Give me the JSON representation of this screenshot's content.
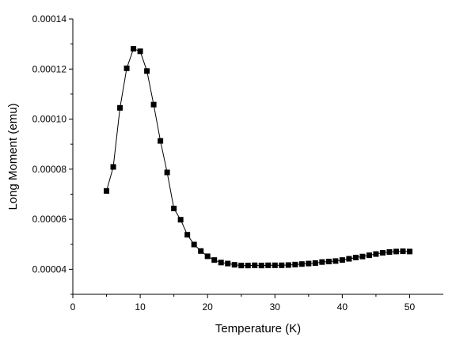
{
  "chart_data": {
    "type": "scatter",
    "title": "",
    "xlabel": "Temperature (K)",
    "ylabel": "Long Moment (emu)",
    "xlim": [
      0,
      55
    ],
    "ylim": [
      3e-05,
      0.00014
    ],
    "xticks": [
      0,
      10,
      20,
      30,
      40,
      50
    ],
    "yticks": [
      4e-05,
      6e-05,
      8e-05,
      0.0001,
      0.00012,
      0.00014
    ],
    "xtick_labels": [
      "0",
      "10",
      "20",
      "30",
      "40",
      "50"
    ],
    "ytick_labels": [
      "0.00004",
      "0.00006",
      "0.00008",
      "0.00010",
      "0.00012",
      "0.00014"
    ],
    "grid": false,
    "legend": false,
    "marker": "square",
    "connected": true,
    "color": "#000000",
    "series": [
      {
        "x": [
          5,
          6,
          7,
          8,
          9,
          10,
          11,
          12,
          13,
          14,
          15,
          16,
          17,
          18,
          19,
          20,
          21,
          22,
          23,
          24,
          25,
          26,
          27,
          28,
          29,
          30,
          31,
          32,
          33,
          34,
          35,
          36,
          37,
          38,
          39,
          40,
          41,
          42,
          43,
          44,
          45,
          46,
          47,
          48,
          49,
          50
        ],
        "y": [
          7.13e-05,
          8.09e-05,
          0.0001045,
          0.0001203,
          0.0001281,
          0.0001271,
          0.0001192,
          0.0001058,
          9.13e-05,
          7.87e-05,
          6.43e-05,
          5.98e-05,
          5.38e-05,
          4.99e-05,
          4.73e-05,
          4.52e-05,
          4.37e-05,
          4.27e-05,
          4.23e-05,
          4.18e-05,
          4.15e-05,
          4.15e-05,
          4.16e-05,
          4.15e-05,
          4.16e-05,
          4.16e-05,
          4.16e-05,
          4.17e-05,
          4.19e-05,
          4.21e-05,
          4.23e-05,
          4.25e-05,
          4.29e-05,
          4.31e-05,
          4.33e-05,
          4.37e-05,
          4.42e-05,
          4.47e-05,
          4.51e-05,
          4.56e-05,
          4.61e-05,
          4.66e-05,
          4.69e-05,
          4.71e-05,
          4.72e-05,
          4.71e-05
        ]
      }
    ]
  }
}
